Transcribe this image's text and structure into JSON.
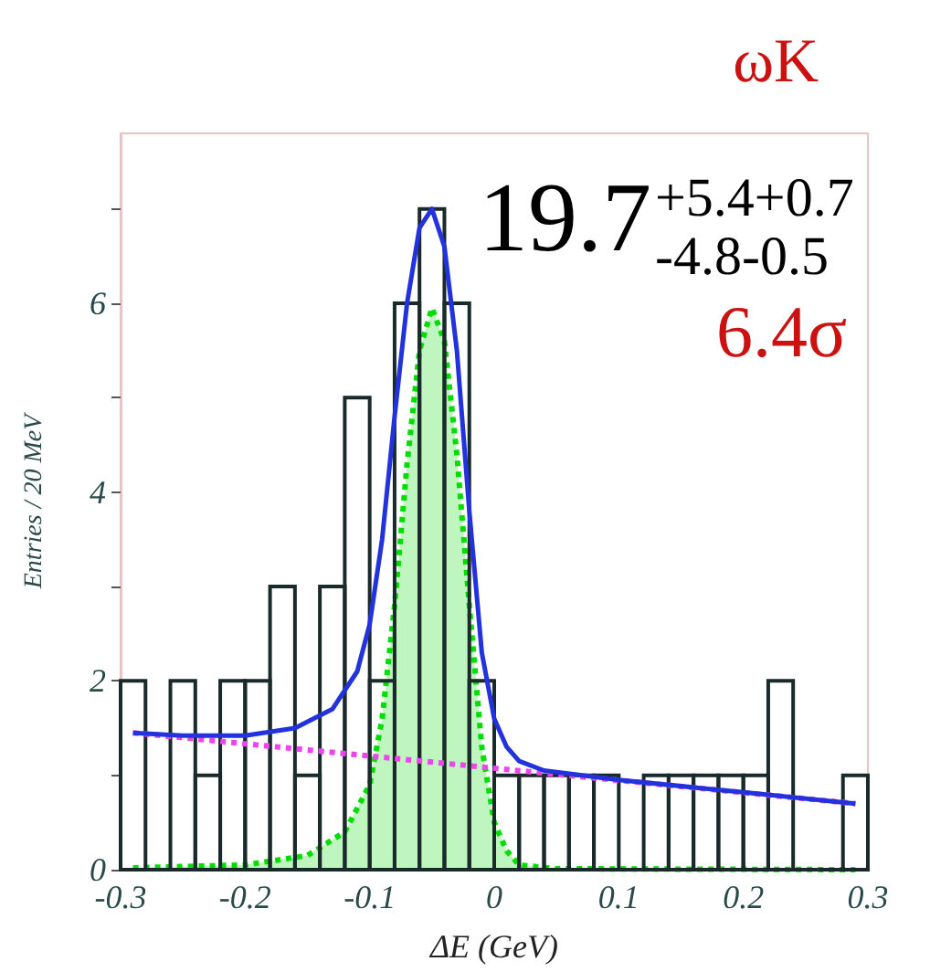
{
  "chart_data": {
    "type": "histogram",
    "title": "ωK",
    "xlabel": "ΔE (GeV)",
    "ylabel": "Entries / 20 MeV",
    "annotations": [
      "19.7$^{+5.4+0.7}$$_{-4.8-0.5}$",
      "6.4σ"
    ],
    "bins": [
      -0.3,
      -0.28,
      -0.26,
      -0.24,
      -0.22,
      -0.2,
      -0.18,
      -0.16,
      -0.14,
      -0.12,
      -0.1,
      -0.08,
      -0.06,
      -0.04,
      -0.02,
      0,
      0.02,
      0.04,
      0.06,
      0.08,
      0.1,
      0.12,
      0.14,
      0.16,
      0.18,
      0.2,
      0.22,
      0.24,
      0.26,
      0.28,
      0.3
    ],
    "values": [
      2,
      0,
      2,
      1,
      2,
      2,
      3,
      1,
      3,
      5,
      2,
      6,
      7,
      6,
      2,
      1,
      1,
      1,
      1,
      1,
      0,
      1,
      1,
      1,
      1,
      1,
      2,
      0,
      0,
      1
    ],
    "color": "#1a2a2a",
    "series": [
      {
        "type": "area",
        "color": "#00dd00",
        "line_style": "dotted",
        "x": [
          -0.29,
          -0.2,
          -0.15,
          -0.12,
          -0.1,
          -0.09,
          -0.08,
          -0.07,
          -0.06,
          -0.05,
          -0.04,
          -0.03,
          -0.02,
          -0.01,
          0,
          0.01,
          0.02,
          0.05,
          0.29
        ],
        "values": [
          0.02,
          0.05,
          0.15,
          0.4,
          0.9,
          1.6,
          2.8,
          4.3,
          5.5,
          5.95,
          5.6,
          4.4,
          2.8,
          1.3,
          0.5,
          0.2,
          0.05,
          0.01,
          0
        ]
      },
      {
        "type": "line",
        "color": "#ee44ee",
        "line_style": "dotted",
        "x": [
          -0.29,
          0.29
        ],
        "values": [
          1.45,
          0.7
        ]
      },
      {
        "type": "line",
        "color": "#2233dd",
        "line_style": "solid",
        "x": [
          -0.29,
          -0.25,
          -0.2,
          -0.16,
          -0.13,
          -0.11,
          -0.1,
          -0.09,
          -0.08,
          -0.07,
          -0.06,
          -0.05,
          -0.04,
          -0.03,
          -0.02,
          -0.01,
          0,
          0.01,
          0.02,
          0.04,
          0.1,
          0.2,
          0.29
        ],
        "values": [
          1.45,
          1.42,
          1.42,
          1.5,
          1.7,
          2.1,
          2.6,
          3.5,
          4.8,
          6.0,
          6.8,
          7.0,
          6.6,
          5.5,
          3.8,
          2.3,
          1.6,
          1.3,
          1.15,
          1.05,
          0.95,
          0.82,
          0.7
        ]
      }
    ],
    "xlim": [
      -0.3,
      0.3
    ],
    "xticks": [
      -0.3,
      -0.2,
      -0.1,
      0,
      0.1,
      0.2,
      0.3
    ],
    "ylim": [
      0,
      7.8
    ],
    "yticks": [
      0,
      {
        "value": 1,
        "label": null
      },
      2,
      {
        "value": 3,
        "label": null
      },
      4,
      {
        "value": 5,
        "label": null
      },
      6,
      {
        "value": 7,
        "label": null
      }
    ],
    "grid": false,
    "marker": "none"
  }
}
